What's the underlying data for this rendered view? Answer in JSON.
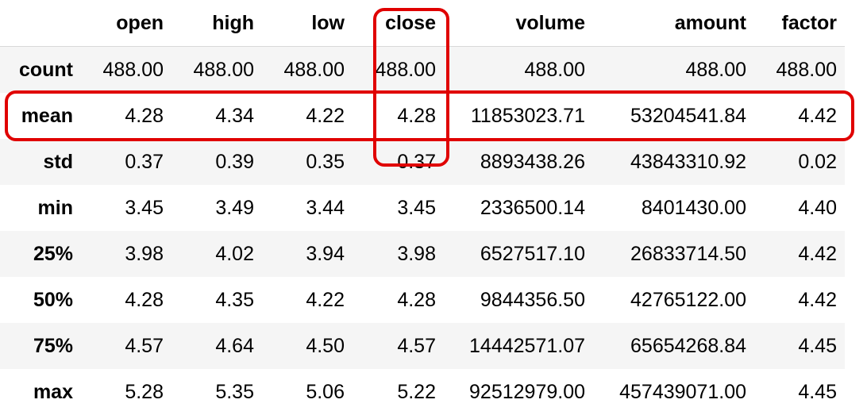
{
  "table": {
    "index_header": "",
    "columns": [
      "open",
      "high",
      "low",
      "close",
      "volume",
      "amount",
      "factor"
    ],
    "rows": [
      {
        "label": "count",
        "values": [
          "488.00",
          "488.00",
          "488.00",
          "488.00",
          "488.00",
          "488.00",
          "488.00"
        ]
      },
      {
        "label": "mean",
        "values": [
          "4.28",
          "4.34",
          "4.22",
          "4.28",
          "11853023.71",
          "53204541.84",
          "4.42"
        ]
      },
      {
        "label": "std",
        "values": [
          "0.37",
          "0.39",
          "0.35",
          "0.37",
          "8893438.26",
          "43843310.92",
          "0.02"
        ]
      },
      {
        "label": "min",
        "values": [
          "3.45",
          "3.49",
          "3.44",
          "3.45",
          "2336500.14",
          "8401430.00",
          "4.40"
        ]
      },
      {
        "label": "25%",
        "values": [
          "3.98",
          "4.02",
          "3.94",
          "3.98",
          "6527517.10",
          "26833714.50",
          "4.42"
        ]
      },
      {
        "label": "50%",
        "values": [
          "4.28",
          "4.35",
          "4.22",
          "4.28",
          "9844356.50",
          "42765122.00",
          "4.42"
        ]
      },
      {
        "label": "75%",
        "values": [
          "4.57",
          "4.64",
          "4.50",
          "4.57",
          "14442571.07",
          "65654268.84",
          "4.45"
        ]
      },
      {
        "label": "max",
        "values": [
          "5.28",
          "5.35",
          "5.06",
          "5.22",
          "92512979.00",
          "457439071.00",
          "4.45"
        ]
      }
    ]
  },
  "highlights": {
    "color": "#e00000",
    "column": "close",
    "row": "mean"
  }
}
